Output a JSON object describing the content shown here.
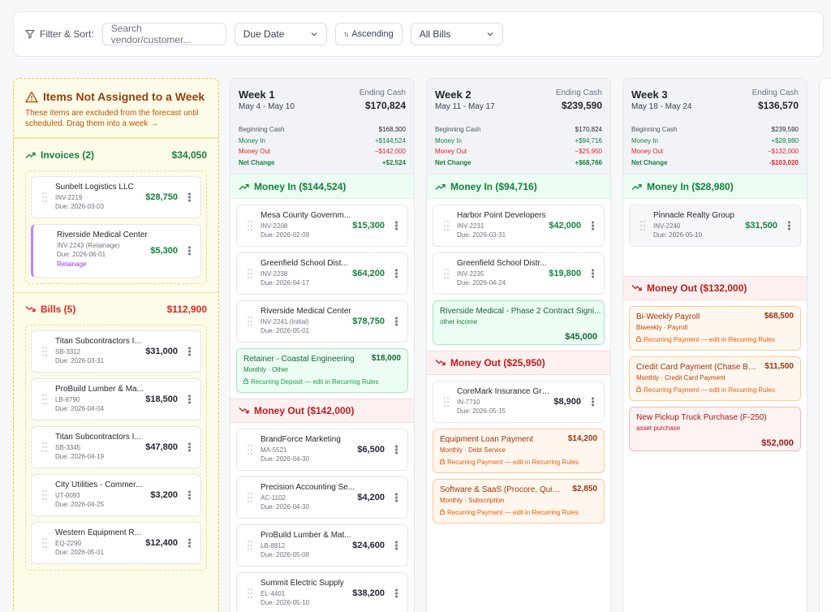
{
  "filter": {
    "label": "Filter & Sort:",
    "search_placeholder": "Search vendor/customer...",
    "date_select": "Due Date",
    "sort_label": "Ascending",
    "bill_select": "All Bills"
  },
  "unassigned": {
    "title": "Items Not Assigned to a Week",
    "subtitle": "These items are excluded from the forecast until scheduled. Drag them into a week →",
    "invoices_label": "Invoices (2)",
    "invoices_total": "$34,050",
    "invoices": [
      {
        "name": "Sunbelt Logistics LLC",
        "code": "INV-2219",
        "due": "Due: 2026-03-03",
        "amount": "$28,750"
      },
      {
        "name": "Riverside Medical Center",
        "code": "INV-2243 (Retainage)",
        "due": "Due: 2026-06-01",
        "tag": "Retainage",
        "amount": "$5,300"
      }
    ],
    "bills_label": "Bills (5)",
    "bills_total": "$112,900",
    "bills": [
      {
        "name": "Titan Subcontractors I...",
        "code": "SB-3312",
        "due": "Due: 2026-03-31",
        "amount": "$31,000"
      },
      {
        "name": "ProBuild Lumber & Ma...",
        "code": "LB-8790",
        "due": "Due: 2026-04-04",
        "amount": "$18,500"
      },
      {
        "name": "Titan Subcontractors I...",
        "code": "SB-3345",
        "due": "Due: 2026-04-19",
        "amount": "$47,800"
      },
      {
        "name": "City Utilities - Commer...",
        "code": "UT-0093",
        "due": "Due: 2026-04-25",
        "amount": "$3,200"
      },
      {
        "name": "Western Equipment R...",
        "code": "EQ-2290",
        "due": "Due: 2026-05-01",
        "amount": "$12,400"
      }
    ]
  },
  "weeks": [
    {
      "title": "Week 1",
      "range": "May 4 - May 10",
      "ending_label": "Ending Cash",
      "ending": "$170,824",
      "beginning_label": "Beginning Cash",
      "beginning": "$168,300",
      "money_in_label": "Money In",
      "money_in": "+$144,524",
      "money_out_label": "Money Out",
      "money_out": "−$142,000",
      "net_label": "Net Change",
      "net": "+$2,524",
      "in_header": "Money In ($144,524)",
      "in_items": [
        {
          "name": "Mesa County Governm...",
          "code": "INV-2208",
          "due": "Due: 2026-02-09",
          "amount": "$15,300"
        },
        {
          "name": "Greenfield School Dist...",
          "code": "INV-2238",
          "due": "Due: 2026-04-17",
          "amount": "$64,200"
        },
        {
          "name": "Riverside Medical Center",
          "code": "INV-2241 (Initial)",
          "due": "Due: 2026-05-01",
          "amount": "$78,750"
        }
      ],
      "in_recurring": {
        "name": "Retainer - Coastal Engineering",
        "sub": "Monthly · Other",
        "note": "Recurring Deposit — edit in Recurring Rules",
        "amount": "$18,000"
      },
      "out_header": "Money Out ($142,000)",
      "out_items": [
        {
          "name": "BrandForce Marketing",
          "code": "MA-5521",
          "due": "Due: 2026-04-30",
          "amount": "$6,500"
        },
        {
          "name": "Precision Accounting Se...",
          "code": "AC-1102",
          "due": "Due: 2026-04-30",
          "amount": "$4,200"
        },
        {
          "name": "ProBuild Lumber & Mat...",
          "code": "LB-8812",
          "due": "Due: 2026-05-08",
          "amount": "$24,600"
        },
        {
          "name": "Summit Electric Supply",
          "code": "EL-4401",
          "due": "Due: 2026-05-10",
          "amount": "$38,200"
        }
      ]
    },
    {
      "title": "Week 2",
      "range": "May 11 - May 17",
      "ending_label": "Ending Cash",
      "ending": "$239,590",
      "beginning_label": "Beginning Cash",
      "beginning": "$170,824",
      "money_in_label": "Money In",
      "money_in": "+$94,716",
      "money_out_label": "Money Out",
      "money_out": "−$25,950",
      "net_label": "Net Change",
      "net": "+$68,766",
      "in_header": "Money In ($94,716)",
      "in_items": [
        {
          "name": "Harbor Point Developers",
          "code": "INV-2231",
          "due": "Due: 2026-03-31",
          "amount": "$42,000"
        },
        {
          "name": "Greenfield School Distr...",
          "code": "INV-2235",
          "due": "Due: 2026-04-24",
          "amount": "$19,800"
        }
      ],
      "in_other": {
        "name": "Riverside Medical - Phase 2 Contract Signi...",
        "sub": "other income",
        "amount": "$45,000"
      },
      "out_header": "Money Out ($25,950)",
      "out_items": [
        {
          "name": "CoreMark Insurance Gro...",
          "code": "IN-7710",
          "due": "Due: 2026-05-15",
          "amount": "$8,900"
        }
      ],
      "out_recurring": [
        {
          "name": "Equipment Loan Payment",
          "sub": "Monthly · Debt Service",
          "note": "Recurring Payment — edit in Recurring Rules",
          "amount": "$14,200"
        },
        {
          "name": "Software & SaaS (Procore, QuickB...",
          "sub": "Monthly · Subscription",
          "note": "Recurring Payment — edit in Recurring Rules",
          "amount": "$2,850"
        }
      ]
    },
    {
      "title": "Week 3",
      "range": "May 18 - May 24",
      "ending_label": "Ending Cash",
      "ending": "$136,570",
      "beginning_label": "Beginning Cash",
      "beginning": "$239,590",
      "money_in_label": "Money In",
      "money_in": "+$28,980",
      "money_out_label": "Money Out",
      "money_out": "−$132,000",
      "net_label": "Net Change",
      "net": "-$103,020",
      "in_header": "Money In ($28,980)",
      "in_items": [
        {
          "name": "Pinnacle Realty Group",
          "code": "INV-2240",
          "due": "Due: 2026-05-10",
          "amount": "$31,500"
        }
      ],
      "out_header": "Money Out ($132,000)",
      "out_recurring": [
        {
          "name": "Bi-Weekly Payroll",
          "sub": "Biweekly · Payroll",
          "note": "Recurring Payment — edit in Recurring Rules",
          "amount": "$68,500"
        },
        {
          "name": "Credit Card Payment (Chase Busi...",
          "sub": "Monthly · Credit Card Payment",
          "note": "Recurring Payment — edit in Recurring Rules",
          "amount": "$11,500"
        }
      ],
      "out_other": {
        "name": "New Pickup Truck Purchase (F-250)",
        "sub": "asset purchase",
        "amount": "$52,000"
      }
    }
  ],
  "colors": {
    "positive": "#15803d",
    "negative": "#dc2626",
    "warning": "#92400e"
  }
}
